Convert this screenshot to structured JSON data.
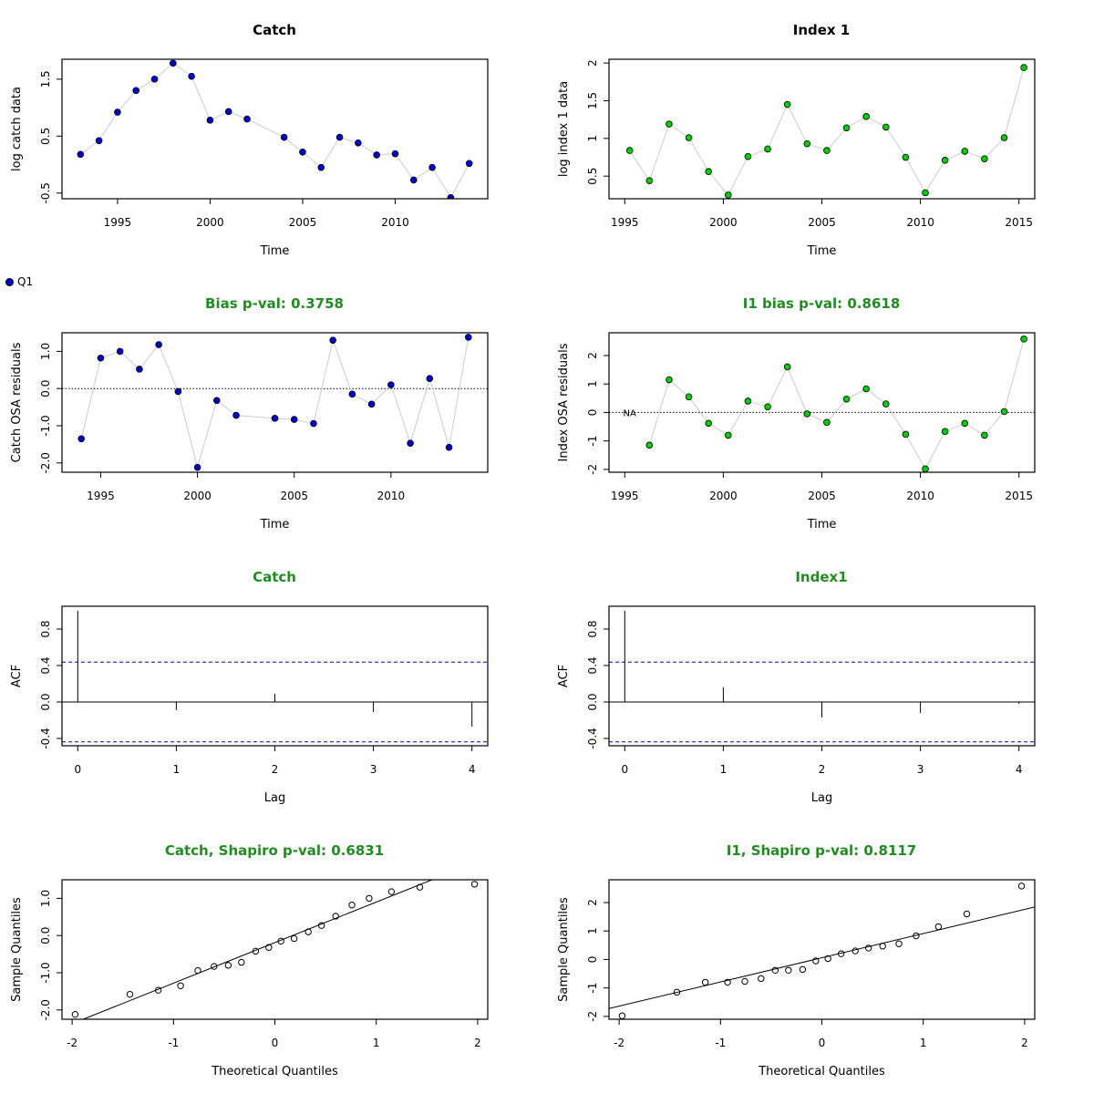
{
  "legend": {
    "label": "Q1"
  },
  "chart_data": [
    {
      "type": "line",
      "title": "Catch",
      "title_color": "#000000",
      "xlabel": "Time",
      "ylabel": "log catch data",
      "xlim": [
        1992,
        2015
      ],
      "ylim": [
        -0.6,
        1.85
      ],
      "xticks": [
        1995,
        2000,
        2005,
        2010
      ],
      "yticks": [
        -0.5,
        0.5,
        1.5
      ],
      "marker": "filled-circle",
      "marker_color": "#0000cc",
      "connector_color": "#cccccc",
      "x": [
        1993,
        1994,
        1995,
        1996,
        1997,
        1998,
        1999,
        2000,
        2001,
        2002,
        2004,
        2005,
        2006,
        2007,
        2008,
        2009,
        2010,
        2011,
        2012,
        2013,
        2014
      ],
      "y": [
        0.18,
        0.42,
        0.92,
        1.3,
        1.5,
        1.78,
        1.55,
        0.78,
        0.93,
        0.8,
        0.48,
        0.22,
        -0.05,
        0.48,
        0.38,
        0.17,
        0.19,
        -0.27,
        -0.05,
        -0.58,
        0.02
      ]
    },
    {
      "type": "line",
      "title": "Index 1",
      "title_color": "#000000",
      "xlabel": "Time",
      "ylabel": "log index 1 data",
      "xlim": [
        1994.2,
        2015.8
      ],
      "ylim": [
        0.2,
        2.05
      ],
      "xticks": [
        1995,
        2000,
        2005,
        2010,
        2015
      ],
      "yticks": [
        0.5,
        1.0,
        1.5,
        2.0
      ],
      "marker": "filled-circle",
      "marker_color": "#00cc00",
      "connector_color": "#cccccc",
      "x": [
        1995.25,
        1996.25,
        1997.25,
        1998.25,
        1999.25,
        2000.25,
        2001.25,
        2002.25,
        2003.25,
        2004.25,
        2005.25,
        2006.25,
        2007.25,
        2008.25,
        2009.25,
        2010.25,
        2011.25,
        2012.25,
        2013.25,
        2014.25,
        2015.25
      ],
      "y": [
        0.84,
        0.44,
        1.19,
        1.01,
        0.56,
        0.25,
        0.76,
        0.86,
        1.45,
        0.93,
        0.84,
        1.14,
        1.29,
        1.15,
        0.75,
        0.28,
        0.71,
        0.83,
        0.73,
        1.01,
        1.94
      ]
    },
    {
      "type": "line",
      "title": "Bias p-val: 0.3758",
      "title_color": "#228b22",
      "xlabel": "Time",
      "ylabel": "Catch OSA residuals",
      "xlim": [
        1993,
        2015
      ],
      "ylim": [
        -2.25,
        1.5
      ],
      "xticks": [
        1995,
        2000,
        2005,
        2010
      ],
      "yticks": [
        -2.0,
        -1.0,
        0.0,
        1.0
      ],
      "ytick_labels": [
        "-2.0",
        "-1.0",
        "0.0",
        "1.0"
      ],
      "zero_line": true,
      "marker": "filled-circle",
      "marker_color": "#0000cc",
      "connector_color": "#cccccc",
      "x": [
        1994,
        1995,
        1996,
        1997,
        1998,
        1999,
        2000,
        2001,
        2002,
        2004,
        2005,
        2006,
        2007,
        2008,
        2009,
        2010,
        2011,
        2012,
        2013,
        2014
      ],
      "y": [
        -1.35,
        0.82,
        1.0,
        0.52,
        1.18,
        -0.08,
        -2.12,
        -0.32,
        -0.72,
        -0.8,
        -0.83,
        -0.94,
        1.3,
        -0.15,
        -0.42,
        0.1,
        -1.47,
        0.27,
        -1.58,
        1.38
      ]
    },
    {
      "type": "line",
      "title": "I1 bias p-val: 0.8618",
      "title_color": "#228b22",
      "xlabel": "Time",
      "ylabel": "Index OSA residuals",
      "xlim": [
        1994.2,
        2015.8
      ],
      "ylim": [
        -2.1,
        2.8
      ],
      "xticks": [
        1995,
        2000,
        2005,
        2010,
        2015
      ],
      "yticks": [
        -2,
        -1,
        0,
        1,
        2
      ],
      "zero_line": true,
      "na_label": "NA",
      "na_x": 1995.25,
      "marker": "filled-circle",
      "marker_color": "#00cc00",
      "connector_color": "#cccccc",
      "x": [
        1996.25,
        1997.25,
        1998.25,
        1999.25,
        2000.25,
        2001.25,
        2002.25,
        2003.25,
        2004.25,
        2005.25,
        2006.25,
        2007.25,
        2008.25,
        2009.25,
        2010.25,
        2011.25,
        2012.25,
        2013.25,
        2014.25,
        2015.25
      ],
      "y": [
        -1.15,
        1.15,
        0.55,
        -0.38,
        -0.8,
        0.4,
        0.2,
        1.6,
        -0.05,
        -0.35,
        0.47,
        0.83,
        0.3,
        -0.77,
        -1.98,
        -0.67,
        -0.38,
        -0.8,
        0.03,
        2.58
      ]
    },
    {
      "type": "bar",
      "subtype": "acf",
      "title": "Catch",
      "title_color": "#228b22",
      "xlabel": "Lag",
      "ylabel": "ACF",
      "xlim": [
        -0.16,
        4.16
      ],
      "ylim": [
        -0.48,
        1.05
      ],
      "xticks": [
        0,
        1,
        2,
        3,
        4
      ],
      "yticks": [
        -0.4,
        0.0,
        0.4,
        0.8
      ],
      "ytick_labels": [
        "-0.4",
        "0.0",
        "0.4",
        "0.8"
      ],
      "conf_limit": 0.438,
      "conf_color": "#0000cc",
      "lags": [
        0,
        1,
        2,
        3,
        4
      ],
      "values": [
        1.0,
        -0.09,
        0.09,
        -0.11,
        -0.27
      ]
    },
    {
      "type": "bar",
      "subtype": "acf",
      "title": "Index1",
      "title_color": "#228b22",
      "xlabel": "Lag",
      "ylabel": "ACF",
      "xlim": [
        -0.16,
        4.16
      ],
      "ylim": [
        -0.48,
        1.05
      ],
      "xticks": [
        0,
        1,
        2,
        3,
        4
      ],
      "yticks": [
        -0.4,
        0.0,
        0.4,
        0.8
      ],
      "ytick_labels": [
        "-0.4",
        "0.0",
        "0.4",
        "0.8"
      ],
      "conf_limit": 0.438,
      "conf_color": "#0000cc",
      "lags": [
        0,
        1,
        2,
        3,
        4
      ],
      "values": [
        1.0,
        0.16,
        -0.17,
        -0.12,
        -0.02
      ]
    },
    {
      "type": "scatter",
      "subtype": "qq",
      "title": "Catch, Shapiro p-val: 0.6831",
      "title_color": "#228b22",
      "xlabel": "Theoretical Quantiles",
      "ylabel": "Sample Quantiles",
      "xlim": [
        -2.1,
        2.1
      ],
      "ylim": [
        -2.25,
        1.5
      ],
      "xticks": [
        -2,
        -1,
        0,
        1,
        2
      ],
      "yticks": [
        -2.0,
        -1.0,
        0.0,
        1.0
      ],
      "ytick_labels": [
        "-2.0",
        "-1.0",
        "0.0",
        "1.0"
      ],
      "marker": "open-circle",
      "ref_line": {
        "slope": 1.09,
        "intercept": -0.19
      },
      "x": [
        -1.97,
        -1.43,
        -1.15,
        -0.93,
        -0.76,
        -0.6,
        -0.46,
        -0.33,
        -0.19,
        -0.06,
        0.06,
        0.19,
        0.33,
        0.46,
        0.6,
        0.76,
        0.93,
        1.15,
        1.43,
        1.97
      ],
      "y": [
        -2.12,
        -1.58,
        -1.47,
        -1.35,
        -0.94,
        -0.83,
        -0.8,
        -0.72,
        -0.42,
        -0.32,
        -0.15,
        -0.08,
        0.1,
        0.27,
        0.52,
        0.82,
        1.0,
        1.18,
        1.3,
        1.38
      ]
    },
    {
      "type": "scatter",
      "subtype": "qq",
      "title": "I1, Shapiro p-val: 0.8117",
      "title_color": "#228b22",
      "xlabel": "Theoretical Quantiles",
      "ylabel": "Sample Quantiles",
      "xlim": [
        -2.1,
        2.1
      ],
      "ylim": [
        -2.1,
        2.8
      ],
      "xticks": [
        -2,
        -1,
        0,
        1,
        2
      ],
      "yticks": [
        -2,
        -1,
        0,
        1,
        2
      ],
      "marker": "open-circle",
      "ref_line": {
        "slope": 0.85,
        "intercept": 0.06
      },
      "x": [
        -1.97,
        -1.43,
        -1.15,
        -0.93,
        -0.76,
        -0.6,
        -0.46,
        -0.33,
        -0.19,
        -0.06,
        0.06,
        0.19,
        0.33,
        0.46,
        0.6,
        0.76,
        0.93,
        1.15,
        1.43,
        1.97
      ],
      "y": [
        -1.98,
        -1.15,
        -0.8,
        -0.8,
        -0.77,
        -0.67,
        -0.38,
        -0.38,
        -0.35,
        -0.05,
        0.03,
        0.2,
        0.3,
        0.4,
        0.47,
        0.55,
        0.83,
        1.15,
        1.6,
        2.58
      ]
    }
  ]
}
